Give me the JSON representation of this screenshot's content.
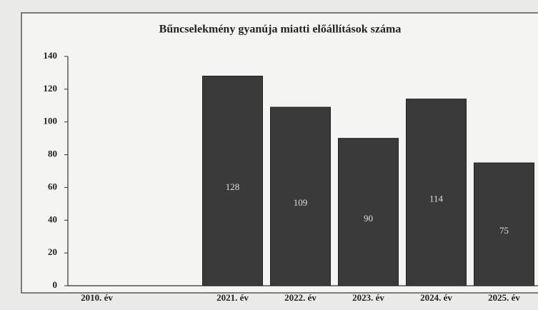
{
  "chart_data": {
    "type": "bar",
    "title": "Bűncselekmény gyanúja miatti előállítások száma",
    "categories": [
      "2010. év",
      null,
      "2021. év",
      "2022. év",
      "2023. év",
      "2024. év",
      "2025. év"
    ],
    "values": [
      null,
      null,
      128,
      109,
      90,
      114,
      75
    ],
    "color": "#3a3a3a",
    "ylim": [
      0,
      140
    ],
    "yticks": [
      0,
      20,
      40,
      60,
      80,
      100,
      120,
      140
    ],
    "grid": false
  }
}
